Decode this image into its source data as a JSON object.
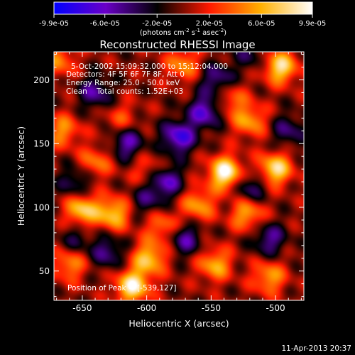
{
  "chart_data": {
    "type": "heatmap",
    "title": "Reconstructed RHESSI Image",
    "xlabel": "Heliocentric X (arcsec)",
    "ylabel": "Heliocentric Y (arcsec)",
    "xlim": [
      -672,
      -478
    ],
    "ylim": [
      27,
      222
    ],
    "x_ticks": [
      -650,
      -600,
      -550,
      -500
    ],
    "y_ticks": [
      50,
      100,
      150,
      200
    ],
    "x_tick_labels": [
      "-650",
      "-600",
      "-550",
      "-500"
    ],
    "y_tick_labels": [
      "50",
      "100",
      "150",
      "200"
    ],
    "colorbar": {
      "min": -9.9e-05,
      "max": 9.9e-05,
      "tick_labels": [
        "-9.9e-05",
        "-6.0e-05",
        "-2.0e-05",
        "2.0e-05",
        "6.0e-05",
        "9.9e-05"
      ],
      "units_base": "(photons cm",
      "units_exp1": "-2",
      "units_mid": " s",
      "units_exp2": "-1",
      "units_mid2": " asec",
      "units_exp3": "-2",
      "units_close": ")",
      "colors": [
        "#0000ff",
        "#6a00c8",
        "#000000",
        "#ff1800",
        "#ffb000",
        "#ffffff"
      ]
    },
    "annotations": [
      "5-Oct-2002 15:09:32.000 to 15:12:04.000",
      "Detectors: 4F 5F 6F 7F 8F, Att 0",
      "Energy Range: 25.0 - 50.0 keV",
      "Clean    Total counts: 1.52E+03"
    ],
    "peak_label": "Position of Peak = [-539,127]",
    "peak": [
      -539,
      127
    ],
    "blobs": [
      {
        "x": -539,
        "y": 127,
        "v": 9.9e-05
      },
      {
        "x": -611,
        "y": 38,
        "v": 9e-05
      },
      {
        "x": -598,
        "y": 60,
        "v": 7e-05
      },
      {
        "x": -650,
        "y": 98,
        "v": 7.5e-05
      },
      {
        "x": -626,
        "y": 95,
        "v": 7e-05
      },
      {
        "x": -500,
        "y": 130,
        "v": 8e-05
      },
      {
        "x": -496,
        "y": 210,
        "v": 8e-05
      },
      {
        "x": -560,
        "y": 102,
        "v": 5.5e-05
      },
      {
        "x": -522,
        "y": 95,
        "v": 6e-05
      },
      {
        "x": -547,
        "y": 55,
        "v": 6e-05
      },
      {
        "x": -505,
        "y": 45,
        "v": 5.5e-05
      },
      {
        "x": -520,
        "y": 168,
        "v": 5.5e-05
      },
      {
        "x": -572,
        "y": 212,
        "v": 5e-05
      },
      {
        "x": -665,
        "y": 160,
        "v": 5e-05
      },
      {
        "x": -668,
        "y": 215,
        "v": 4.5e-05
      },
      {
        "x": -640,
        "y": 135,
        "v": 4.5e-05
      },
      {
        "x": -588,
        "y": 85,
        "v": 4.5e-05
      },
      {
        "x": -660,
        "y": 55,
        "v": 5e-05
      },
      {
        "x": -535,
        "y": 185,
        "v": 4e-05
      },
      {
        "x": -600,
        "y": 130,
        "v": 3e-05
      },
      {
        "x": -620,
        "y": 170,
        "v": 3e-05
      },
      {
        "x": -640,
        "y": 190,
        "v": -5e-05
      },
      {
        "x": -575,
        "y": 155,
        "v": -7.5e-05
      },
      {
        "x": -555,
        "y": 175,
        "v": -6.5e-05
      },
      {
        "x": -585,
        "y": 120,
        "v": -6e-05
      },
      {
        "x": -615,
        "y": 150,
        "v": -5.5e-05
      },
      {
        "x": -545,
        "y": 200,
        "v": -5e-05
      },
      {
        "x": -630,
        "y": 65,
        "v": -4.5e-05
      },
      {
        "x": -570,
        "y": 75,
        "v": -5e-05
      },
      {
        "x": -505,
        "y": 75,
        "v": -5e-05
      },
      {
        "x": -520,
        "y": 115,
        "v": -4.5e-05
      },
      {
        "x": -655,
        "y": 120,
        "v": -4e-05
      },
      {
        "x": -490,
        "y": 160,
        "v": -4e-05
      },
      {
        "x": -600,
        "y": 105,
        "v": -3.5e-05
      },
      {
        "x": -655,
        "y": 75,
        "v": -3e-05
      },
      {
        "x": -520,
        "y": 220,
        "v": -3e-05
      }
    ]
  },
  "footer": {
    "timestamp": "11-Apr-2013 20:37"
  }
}
